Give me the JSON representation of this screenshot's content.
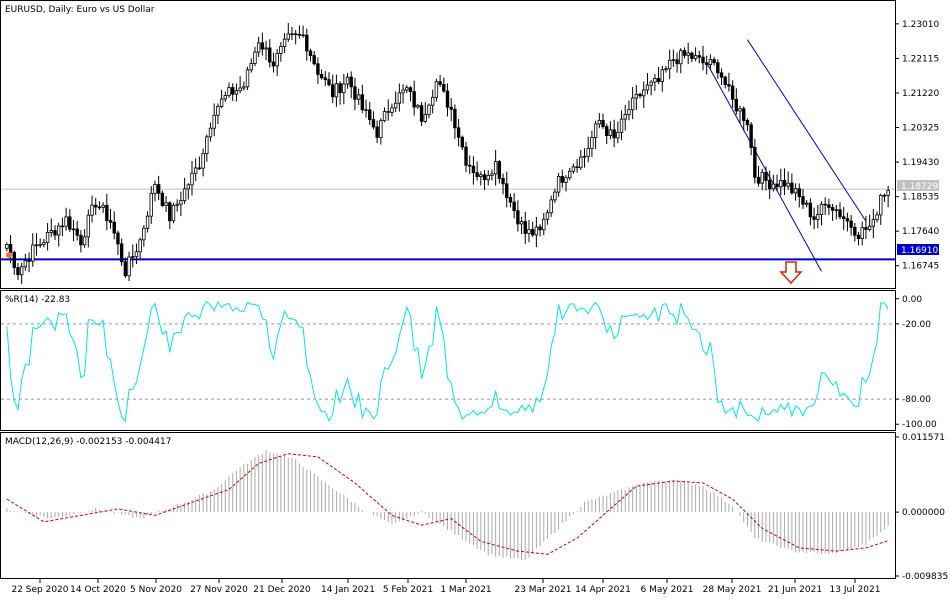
{
  "chart_data": [
    {
      "type": "candlestick",
      "title": "EURUSD, Daily:  Euro vs US Dollar",
      "ylim": [
        1.1622,
        1.2355
      ],
      "y_ticks": [
        "1.23010",
        "1.22115",
        "1.21220",
        "1.20325",
        "1.19430",
        "1.18535",
        "1.17640",
        "1.16745"
      ],
      "current_price": "1.18729",
      "support_level": "1.16910",
      "x_tick_labels": [
        "22 Sep 2020",
        "14 Oct 2020",
        "5 Nov 2020",
        "27 Nov 2020",
        "21 Dec 2020",
        "14 Jan 2021",
        "5 Feb 2021",
        "1 Mar 2021",
        "23 Mar 2021",
        "14 Apr 2021",
        "6 May 2021",
        "28 May 2021",
        "21 Jun 2021",
        "13 Jul 2021"
      ],
      "close_anchors": [
        [
          0,
          1.173
        ],
        [
          3,
          1.166
        ],
        [
          7,
          1.1715
        ],
        [
          12,
          1.176
        ],
        [
          16,
          1.1795
        ],
        [
          20,
          1.174
        ],
        [
          24,
          1.184
        ],
        [
          28,
          1.179
        ],
        [
          32,
          1.166
        ],
        [
          36,
          1.174
        ],
        [
          40,
          1.189
        ],
        [
          44,
          1.18
        ],
        [
          48,
          1.187
        ],
        [
          52,
          1.194
        ],
        [
          56,
          1.208
        ],
        [
          60,
          1.212
        ],
        [
          64,
          1.214
        ],
        [
          68,
          1.226
        ],
        [
          72,
          1.22
        ],
        [
          76,
          1.226
        ],
        [
          80,
          1.227
        ],
        [
          84,
          1.218
        ],
        [
          88,
          1.212
        ],
        [
          92,
          1.216
        ],
        [
          96,
          1.208
        ],
        [
          100,
          1.202
        ],
        [
          104,
          1.21
        ],
        [
          108,
          1.213
        ],
        [
          112,
          1.206
        ],
        [
          116,
          1.215
        ],
        [
          120,
          1.208
        ],
        [
          124,
          1.195
        ],
        [
          128,
          1.19
        ],
        [
          132,
          1.194
        ],
        [
          136,
          1.184
        ],
        [
          140,
          1.176
        ],
        [
          144,
          1.176
        ],
        [
          148,
          1.188
        ],
        [
          152,
          1.193
        ],
        [
          156,
          1.196
        ],
        [
          160,
          1.205
        ],
        [
          164,
          1.2
        ],
        [
          168,
          1.208
        ],
        [
          172,
          1.213
        ],
        [
          176,
          1.215
        ],
        [
          180,
          1.221
        ],
        [
          184,
          1.222
        ],
        [
          188,
          1.22
        ],
        [
          192,
          1.219
        ],
        [
          196,
          1.21
        ],
        [
          200,
          1.205
        ],
        [
          202,
          1.191
        ],
        [
          206,
          1.189
        ],
        [
          210,
          1.189
        ],
        [
          214,
          1.185
        ],
        [
          218,
          1.18
        ],
        [
          222,
          1.184
        ],
        [
          226,
          1.18
        ],
        [
          230,
          1.176
        ],
        [
          234,
          1.178
        ],
        [
          236,
          1.186
        ],
        [
          238,
          1.1873
        ]
      ],
      "indicators": [
        {
          "name": "%R(14) -22.83",
          "y_ticks": [
            "0.00",
            "-20.00",
            "-80.00",
            "-100.00"
          ],
          "ylim": [
            -103,
            3
          ],
          "levels": [
            -20,
            -80
          ],
          "color": "#00e5ee"
        },
        {
          "name": "MACD(12,26,9) -0.002153 -0.004417",
          "y_ticks": [
            "0.011571",
            "0.000000",
            "-0.009835"
          ],
          "ylim": [
            -0.009835,
            0.011571
          ],
          "histogram_color": "#a9a9a9",
          "signal_color": "#cc0000",
          "macd_anchors": [
            [
              0,
              0.0005
            ],
            [
              12,
              -0.001
            ],
            [
              24,
              0.0005
            ],
            [
              36,
              -0.001
            ],
            [
              48,
              0.0015
            ],
            [
              56,
              0.0035
            ],
            [
              62,
              0.0065
            ],
            [
              70,
              0.0095
            ],
            [
              78,
              0.008
            ],
            [
              86,
              0.0045
            ],
            [
              96,
              0.0005
            ],
            [
              104,
              -0.002
            ],
            [
              112,
              0.0
            ],
            [
              120,
              -0.003
            ],
            [
              130,
              -0.0065
            ],
            [
              140,
              -0.0075
            ],
            [
              148,
              -0.003
            ],
            [
              156,
              0.0015
            ],
            [
              164,
              0.003
            ],
            [
              172,
              0.0045
            ],
            [
              180,
              0.005
            ],
            [
              188,
              0.004
            ],
            [
              196,
              0.001
            ],
            [
              202,
              -0.004
            ],
            [
              212,
              -0.006
            ],
            [
              222,
              -0.0065
            ],
            [
              232,
              -0.005
            ],
            [
              238,
              -0.0022
            ]
          ],
          "signal_anchors": [
            [
              0,
              0.002
            ],
            [
              10,
              -0.0015
            ],
            [
              20,
              -0.0005
            ],
            [
              30,
              0.0005
            ],
            [
              40,
              -0.0005
            ],
            [
              50,
              0.0015
            ],
            [
              60,
              0.0035
            ],
            [
              68,
              0.0075
            ],
            [
              76,
              0.009
            ],
            [
              84,
              0.0085
            ],
            [
              94,
              0.0045
            ],
            [
              104,
              -0.0005
            ],
            [
              112,
              -0.002
            ],
            [
              120,
              -0.001
            ],
            [
              128,
              -0.0045
            ],
            [
              138,
              -0.006
            ],
            [
              146,
              -0.0065
            ],
            [
              154,
              -0.004
            ],
            [
              162,
              0.0
            ],
            [
              170,
              0.004
            ],
            [
              180,
              0.0048
            ],
            [
              188,
              0.0045
            ],
            [
              196,
              0.002
            ],
            [
              204,
              -0.0025
            ],
            [
              214,
              -0.0055
            ],
            [
              224,
              -0.006
            ],
            [
              232,
              -0.0055
            ],
            [
              238,
              -0.0044
            ]
          ]
        }
      ]
    }
  ]
}
